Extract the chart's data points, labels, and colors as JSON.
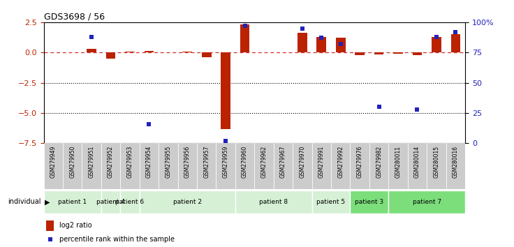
{
  "title": "GDS3698 / 56",
  "samples": [
    "GSM279949",
    "GSM279950",
    "GSM279951",
    "GSM279952",
    "GSM279953",
    "GSM279954",
    "GSM279955",
    "GSM279956",
    "GSM279957",
    "GSM279959",
    "GSM279960",
    "GSM279962",
    "GSM279967",
    "GSM279970",
    "GSM279991",
    "GSM279992",
    "GSM279976",
    "GSM279982",
    "GSM280011",
    "GSM280014",
    "GSM280015",
    "GSM280016"
  ],
  "log2_ratio": [
    0.0,
    0.0,
    0.3,
    -0.5,
    0.05,
    0.1,
    0.0,
    0.05,
    -0.4,
    -6.3,
    2.3,
    0.0,
    0.0,
    1.6,
    1.3,
    1.2,
    -0.2,
    -0.15,
    -0.1,
    -0.2,
    1.3,
    1.5
  ],
  "percentile_rank": [
    null,
    null,
    88,
    null,
    null,
    16,
    null,
    null,
    null,
    2,
    97,
    null,
    null,
    95,
    87,
    82,
    null,
    30,
    null,
    28,
    88,
    92
  ],
  "patient_groups": [
    {
      "label": "patient 1",
      "start": 0,
      "end": 2,
      "color": "#d5f0d5"
    },
    {
      "label": "patient 4",
      "start": 3,
      "end": 3,
      "color": "#d5f0d5"
    },
    {
      "label": "patient 6",
      "start": 4,
      "end": 4,
      "color": "#d5f0d5"
    },
    {
      "label": "patient 2",
      "start": 5,
      "end": 9,
      "color": "#d5f0d5"
    },
    {
      "label": "patient 8",
      "start": 10,
      "end": 13,
      "color": "#d5f0d5"
    },
    {
      "label": "patient 5",
      "start": 14,
      "end": 15,
      "color": "#d5f0d5"
    },
    {
      "label": "patient 3",
      "start": 16,
      "end": 17,
      "color": "#7bde7b"
    },
    {
      "label": "patient 7",
      "start": 18,
      "end": 21,
      "color": "#7bde7b"
    }
  ],
  "ylim": [
    -7.5,
    2.5
  ],
  "yticks_left": [
    -7.5,
    -5.0,
    -2.5,
    0.0,
    2.5
  ],
  "yticks_right_pct": [
    0,
    25,
    50,
    75,
    100
  ],
  "hlines_dotted": [
    -5.0,
    -2.5
  ],
  "bar_color_red": "#bb2200",
  "bar_color_blue": "#2222bb",
  "dashed_line_color": "#cc3333"
}
